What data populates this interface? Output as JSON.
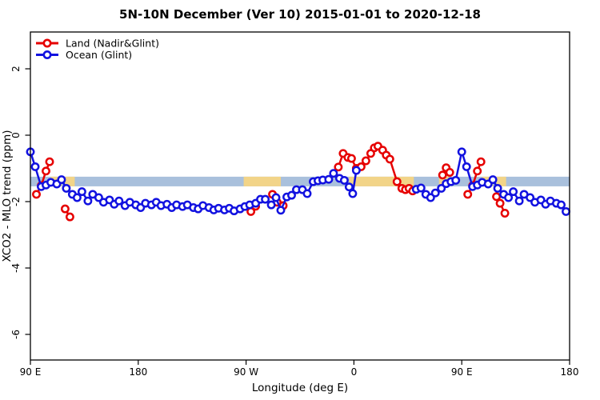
{
  "chart_data": {
    "type": "line",
    "title": "5N-10N December (Ver 10)   2015-01-01 to 2020-12-18",
    "xlabel": "Longitude (deg E)",
    "ylabel": "XCO2 - MLO trend (ppm)",
    "grid": false,
    "legend_position": "top-left",
    "x_axis": {
      "tick_labels": [
        "90 E",
        "180",
        "90 W",
        "0",
        "90 E",
        "180"
      ],
      "tick_offsets_deg": [
        0,
        90,
        180,
        270,
        360,
        450
      ],
      "span_deg": 450,
      "note": "longitude axis wraps eastward: 90E to 180, 90W, 0, 90E, 180"
    },
    "y_axis": {
      "ticks": [
        2,
        0,
        -2,
        -4,
        -6
      ],
      "range_ppm": [
        3.1,
        -6.8
      ]
    },
    "map_strip": {
      "description": "5N-10N latitude world-map band: ocean blue with tan land patches",
      "y_top_ppm": -1.25,
      "y_bottom_ppm": -1.54,
      "ocean_color": "#a9c0dc",
      "land_color": "#f2d488",
      "land_segments_deg": [
        [
          17,
          26
        ],
        [
          29,
          37
        ],
        [
          178,
          209
        ],
        [
          266,
          320
        ],
        [
          341,
          350
        ],
        [
          377,
          386
        ],
        [
          389,
          397
        ]
      ]
    },
    "series": [
      {
        "name": "Land (Nadir&Glint)",
        "color": "#e60000",
        "clusters": [
          [
            [
              5,
              -1.78
            ],
            [
              9,
              -1.52
            ],
            [
              13,
              -1.08
            ],
            [
              16,
              -0.8
            ]
          ],
          [
            [
              29,
              -2.22
            ],
            [
              33,
              -2.46
            ]
          ],
          [
            [
              184,
              -2.3
            ],
            [
              188,
              -2.14
            ]
          ],
          [
            [
              202,
              -1.78
            ],
            [
              206,
              -2.02
            ],
            [
              211,
              -2.12
            ]
          ],
          [
            [
              257,
              -0.96
            ],
            [
              261,
              -0.55
            ],
            [
              265,
              -0.67
            ],
            [
              268,
              -0.7
            ],
            [
              272,
              -1.0
            ],
            [
              276,
              -0.95
            ],
            [
              280,
              -0.77
            ],
            [
              284,
              -0.55
            ],
            [
              287,
              -0.38
            ],
            [
              290,
              -0.33
            ],
            [
              294,
              -0.45
            ],
            [
              297,
              -0.6
            ],
            [
              300,
              -0.72
            ],
            [
              306,
              -1.4
            ],
            [
              310,
              -1.6
            ],
            [
              313,
              -1.64
            ],
            [
              316,
              -1.6
            ],
            [
              319,
              -1.68
            ]
          ],
          [
            [
              344,
              -1.2
            ],
            [
              347,
              -0.98
            ],
            [
              350,
              -1.12
            ]
          ],
          [
            [
              365,
              -1.78
            ],
            [
              369,
              -1.52
            ],
            [
              373,
              -1.08
            ],
            [
              376,
              -0.8
            ]
          ],
          [
            [
              389,
              -1.85
            ],
            [
              392,
              -2.05
            ],
            [
              396,
              -2.35
            ]
          ]
        ]
      },
      {
        "name": "Ocean (Glint)",
        "color": "#1212e0",
        "clusters": [
          [
            [
              0,
              -0.5
            ],
            [
              4,
              -0.95
            ],
            [
              9,
              -1.55
            ],
            [
              13,
              -1.5
            ],
            [
              17,
              -1.42
            ],
            [
              22,
              -1.47
            ],
            [
              26,
              -1.34
            ],
            [
              30,
              -1.6
            ],
            [
              35,
              -1.78
            ],
            [
              39,
              -1.88
            ],
            [
              43,
              -1.7
            ],
            [
              48,
              -1.98
            ],
            [
              52,
              -1.78
            ],
            [
              57,
              -1.88
            ],
            [
              61,
              -2.02
            ],
            [
              66,
              -1.95
            ],
            [
              70,
              -2.08
            ],
            [
              74,
              -1.98
            ],
            [
              79,
              -2.12
            ],
            [
              83,
              -2.02
            ],
            [
              88,
              -2.1
            ],
            [
              92,
              -2.18
            ],
            [
              96,
              -2.05
            ],
            [
              101,
              -2.1
            ],
            [
              105,
              -2.02
            ],
            [
              109,
              -2.12
            ],
            [
              114,
              -2.08
            ],
            [
              118,
              -2.18
            ],
            [
              122,
              -2.1
            ],
            [
              127,
              -2.15
            ],
            [
              131,
              -2.1
            ],
            [
              136,
              -2.18
            ],
            [
              140,
              -2.22
            ],
            [
              144,
              -2.12
            ],
            [
              149,
              -2.18
            ],
            [
              153,
              -2.25
            ],
            [
              157,
              -2.2
            ],
            [
              162,
              -2.25
            ],
            [
              166,
              -2.2
            ],
            [
              170,
              -2.28
            ],
            [
              175,
              -2.22
            ],
            [
              179,
              -2.15
            ],
            [
              183,
              -2.1
            ],
            [
              188,
              -2.05
            ],
            [
              192,
              -1.93
            ],
            [
              196,
              -1.93
            ],
            [
              201,
              -2.1
            ],
            [
              205,
              -1.88
            ],
            [
              209,
              -2.26
            ],
            [
              214,
              -1.86
            ],
            [
              218,
              -1.81
            ],
            [
              222,
              -1.64
            ],
            [
              227,
              -1.64
            ],
            [
              231,
              -1.76
            ],
            [
              236,
              -1.4
            ],
            [
              240,
              -1.37
            ],
            [
              244,
              -1.35
            ],
            [
              249,
              -1.33
            ],
            [
              253,
              -1.15
            ],
            [
              258,
              -1.3
            ],
            [
              262,
              -1.36
            ],
            [
              266,
              -1.56
            ],
            [
              269,
              -1.76
            ],
            [
              272,
              -1.06
            ]
          ],
          [
            [
              322,
              -1.63
            ],
            [
              326,
              -1.59
            ],
            [
              330,
              -1.78
            ],
            [
              334,
              -1.88
            ],
            [
              338,
              -1.74
            ],
            [
              343,
              -1.6
            ],
            [
              347,
              -1.46
            ],
            [
              351,
              -1.4
            ],
            [
              355,
              -1.36
            ],
            [
              360,
              -0.5
            ],
            [
              364,
              -0.95
            ],
            [
              369,
              -1.55
            ],
            [
              373,
              -1.5
            ],
            [
              377,
              -1.42
            ],
            [
              382,
              -1.47
            ],
            [
              386,
              -1.34
            ],
            [
              390,
              -1.6
            ],
            [
              395,
              -1.78
            ],
            [
              399,
              -1.88
            ],
            [
              403,
              -1.7
            ],
            [
              408,
              -1.98
            ],
            [
              412,
              -1.78
            ],
            [
              417,
              -1.88
            ],
            [
              421,
              -2.02
            ],
            [
              426,
              -1.95
            ],
            [
              430,
              -2.08
            ],
            [
              434,
              -1.98
            ],
            [
              439,
              -2.05
            ],
            [
              443,
              -2.1
            ],
            [
              447,
              -2.3
            ]
          ]
        ]
      }
    ],
    "frame_color": "#000000",
    "background_color": "#ffffff"
  }
}
